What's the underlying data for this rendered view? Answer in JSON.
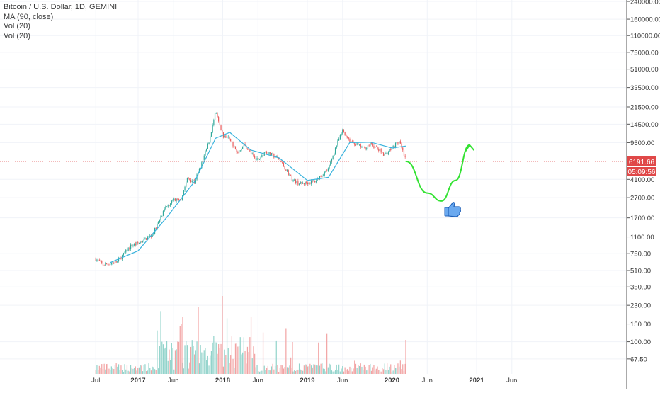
{
  "legend": {
    "symbol_line": "Bitcoin / U.S. Dollar, 1D, GEMINI",
    "ma_line": "MA (90, close)",
    "vol_line_1": "Vol (20)",
    "vol_line_2": "Vol (20)"
  },
  "price_badge": "6191.66",
  "countdown_badge": "05:09:56",
  "chart_data": {
    "type": "candlestick",
    "symbol": "Bitcoin / U.S. Dollar, 1D, GEMINI",
    "indicators": [
      "MA (90, close)",
      "Vol (20)",
      "Vol (20)"
    ],
    "y_scale": "log",
    "y_ticks": [
      "240000.00",
      "160000.00",
      "110000.00",
      "75000.00",
      "51000.00",
      "33500.00",
      "21500.00",
      "14500.00",
      "9500.00",
      "6191.66",
      "4100.00",
      "2700.00",
      "1700.00",
      "1100.00",
      "750.00",
      "510.00",
      "350.00",
      "230.00",
      "150.00",
      "100.00",
      "67.50"
    ],
    "x_ticks": [
      "Jul",
      "2017",
      "Jun",
      "2018",
      "Jun",
      "2019",
      "Jun",
      "2020",
      "Jun",
      "2021",
      "Jun"
    ],
    "last_price": 6191.66,
    "countdown": "05:09:56",
    "price_path": [
      [
        "2016-07",
        670
      ],
      [
        "2016-08",
        580
      ],
      [
        "2016-10",
        620
      ],
      [
        "2016-12",
        900
      ],
      [
        "2017-01",
        950
      ],
      [
        "2017-03",
        1150
      ],
      [
        "2017-05",
        2200
      ],
      [
        "2017-06",
        2600
      ],
      [
        "2017-07",
        2500
      ],
      [
        "2017-08",
        4200
      ],
      [
        "2017-09",
        3900
      ],
      [
        "2017-10",
        5800
      ],
      [
        "2017-11",
        9500
      ],
      [
        "2017-12",
        19000
      ],
      [
        "2018-01",
        11000
      ],
      [
        "2018-02",
        10500
      ],
      [
        "2018-03",
        7500
      ],
      [
        "2018-04",
        9000
      ],
      [
        "2018-06",
        6300
      ],
      [
        "2018-07",
        7800
      ],
      [
        "2018-09",
        6500
      ],
      [
        "2018-11",
        4000
      ],
      [
        "2018-12",
        3700
      ],
      [
        "2019-02",
        3900
      ],
      [
        "2019-04",
        5200
      ],
      [
        "2019-05",
        8500
      ],
      [
        "2019-06",
        12500
      ],
      [
        "2019-07",
        10000
      ],
      [
        "2019-09",
        8300
      ],
      [
        "2019-10",
        9200
      ],
      [
        "2019-12",
        7200
      ],
      [
        "2020-02",
        9800
      ],
      [
        "2020-03",
        6191.66
      ]
    ],
    "ma_path": [
      [
        "2016-09",
        610
      ],
      [
        "2017-01",
        800
      ],
      [
        "2017-05",
        1700
      ],
      [
        "2017-09",
        3900
      ],
      [
        "2017-12",
        10500
      ],
      [
        "2018-02",
        12000
      ],
      [
        "2018-05",
        8000
      ],
      [
        "2018-09",
        6700
      ],
      [
        "2019-01",
        4000
      ],
      [
        "2019-04",
        4300
      ],
      [
        "2019-07",
        9500
      ],
      [
        "2019-10",
        9600
      ],
      [
        "2020-01",
        8400
      ],
      [
        "2020-03",
        8800
      ]
    ],
    "projection_path": [
      [
        "2020-03",
        6191.66
      ],
      [
        "2020-06",
        3000
      ],
      [
        "2020-08",
        2500
      ],
      [
        "2020-10",
        4000
      ],
      [
        "2020-12",
        9000
      ]
    ]
  }
}
